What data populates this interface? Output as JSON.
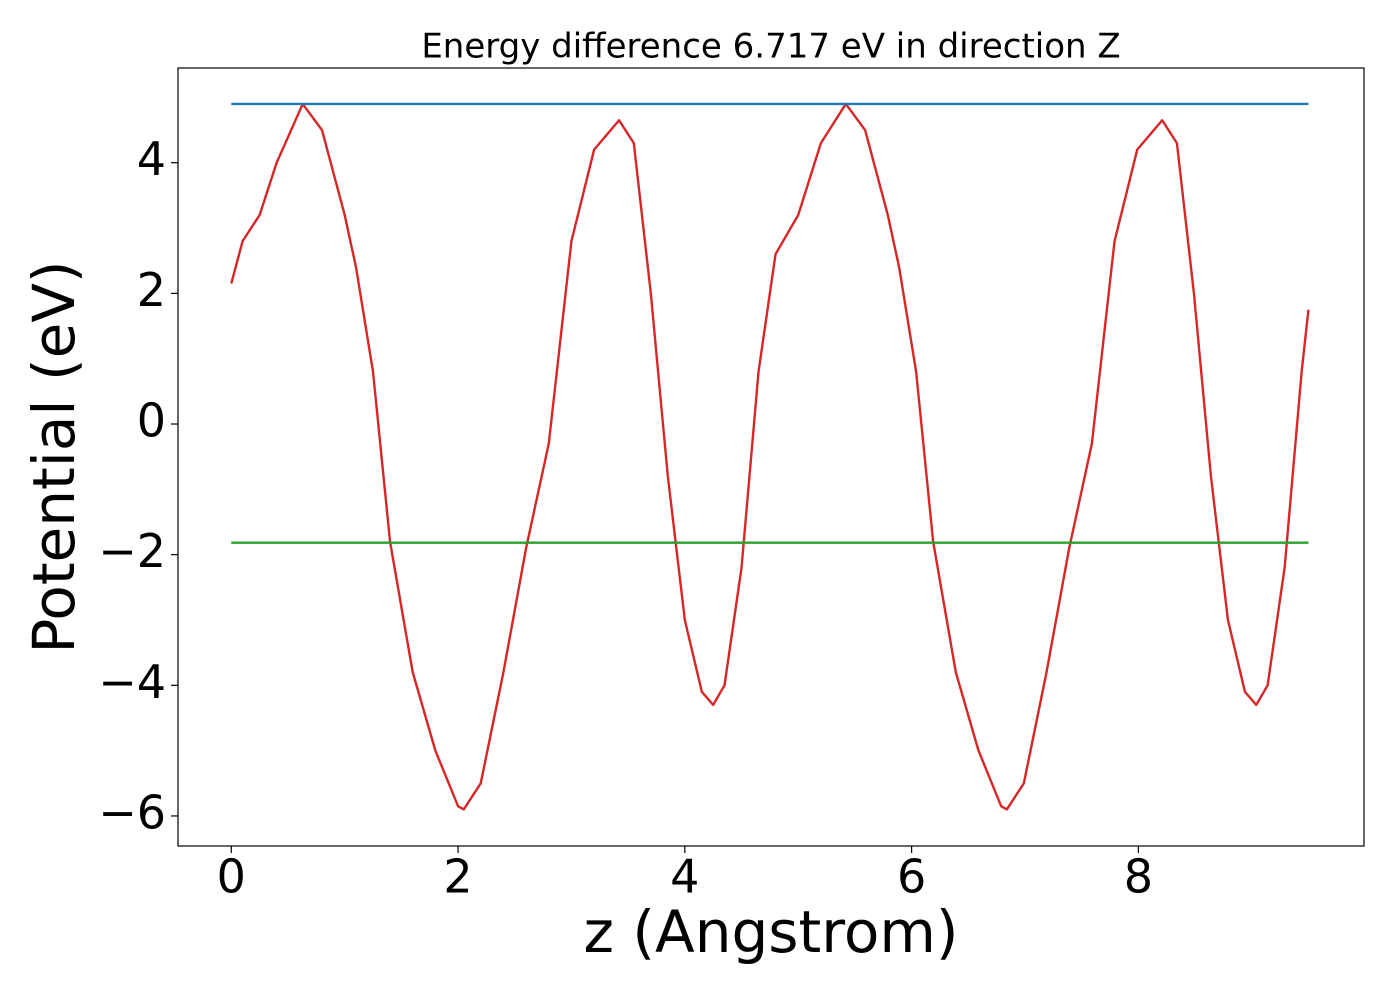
{
  "chart_data": {
    "type": "line",
    "title": "Energy difference 6.717 eV in direction Z",
    "xlabel": "z (Angstrom)",
    "ylabel": "Potential (eV)",
    "xlim": [
      -0.47,
      9.99
    ],
    "ylim": [
      -6.46,
      5.45
    ],
    "xticks": [
      0,
      2,
      4,
      6,
      8
    ],
    "yticks": [
      {
        "value": -6,
        "label": "−6"
      },
      {
        "value": -4,
        "label": "−4"
      },
      {
        "value": -2,
        "label": "−2"
      },
      0,
      2,
      4
    ],
    "series": [
      {
        "color": "#d62728",
        "x": [
          0,
          0.1,
          0.25,
          0.4,
          0.63,
          0.8,
          1.0,
          1.1,
          1.25,
          1.4,
          1.6,
          1.8,
          2.0,
          2.05,
          2.2,
          2.4,
          2.6,
          2.8,
          3.0,
          3.2,
          3.42,
          3.55,
          3.7,
          3.85,
          4.0,
          4.15,
          4.25,
          4.35,
          4.5,
          4.65,
          4.8,
          5.0,
          5.2,
          5.42,
          5.59,
          5.79,
          5.89,
          6.04,
          6.19,
          6.39,
          6.59,
          6.79,
          6.84,
          6.99,
          7.19,
          7.39,
          7.59,
          7.79,
          7.99,
          8.21,
          8.34,
          8.49,
          8.64,
          8.79,
          8.94,
          9.04,
          9.14,
          9.29,
          9.44,
          9.5
        ],
        "values": [
          2.15,
          2.8,
          3.2,
          4.0,
          4.9,
          4.5,
          3.2,
          2.4,
          0.8,
          -1.8,
          -3.8,
          -5.0,
          -5.85,
          -5.9,
          -5.5,
          -3.8,
          -1.9,
          -0.3,
          2.8,
          4.2,
          4.65,
          4.3,
          2.0,
          -0.8,
          -3.0,
          -4.1,
          -4.3,
          -4.0,
          -2.2,
          0.8,
          2.6,
          3.2,
          4.3,
          4.9,
          4.5,
          3.2,
          2.4,
          0.8,
          -1.8,
          -3.8,
          -5.0,
          -5.85,
          -5.9,
          -5.5,
          -3.8,
          -1.9,
          -0.3,
          2.8,
          4.2,
          4.65,
          4.3,
          2.0,
          -0.8,
          -3.0,
          -4.1,
          -4.3,
          -4.0,
          -2.2,
          0.8,
          1.75
        ]
      },
      {
        "color": "#1f77b4",
        "x": [
          0,
          9.5
        ],
        "values": [
          4.9,
          4.9
        ]
      },
      {
        "color": "#2ca02c",
        "x": [
          0,
          9.5
        ],
        "values": [
          -1.817,
          -1.817
        ]
      }
    ]
  }
}
